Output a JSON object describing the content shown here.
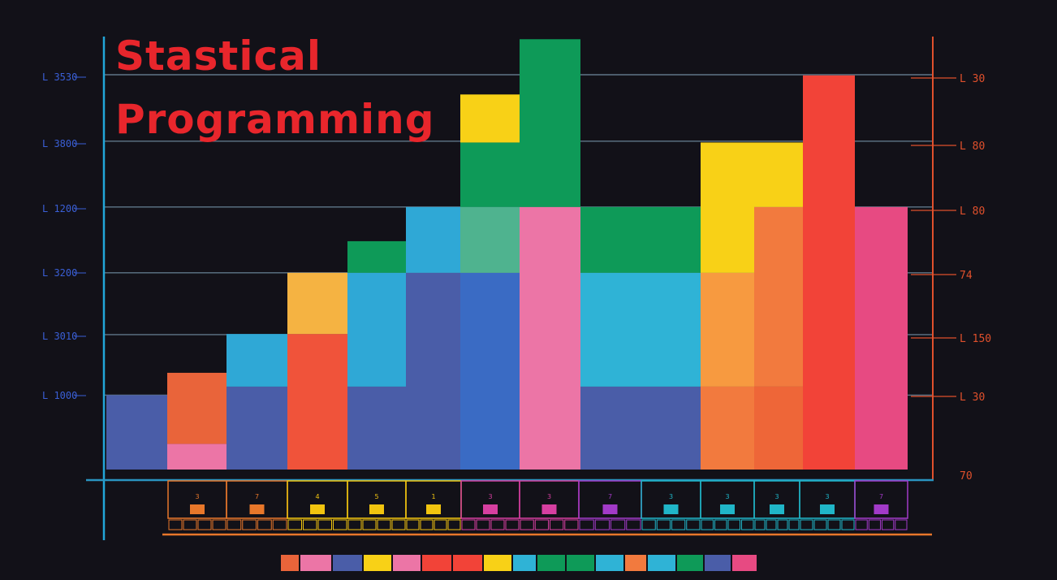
{
  "title_line1": "Stastical",
  "title_line2": "Programming",
  "colors": {
    "background": "#121118",
    "left_axis": "#22a6d8",
    "right_axis": "#e0502c",
    "gridline": "#5f7688",
    "left_tick_text": "#3a5fd6",
    "right_tick_text": "#e0502c"
  },
  "chart_data": {
    "type": "bar",
    "stacked": true,
    "title": "Stastical Programming",
    "left_ticks": [
      "L 1000",
      "L 3010",
      "L 3200",
      "L 1200",
      "L 3800",
      "L 3530"
    ],
    "right_ticks": [
      "70",
      "L 30",
      "L 150",
      "74",
      "L 80",
      "L 80",
      "L 30"
    ],
    "ylim": [
      0,
      600
    ],
    "categories": [
      "3",
      "7",
      "4",
      "5",
      "1",
      "3",
      "3",
      "7",
      "3",
      "3",
      "3",
      "3",
      "7"
    ],
    "category_colors": [
      "#e8772a",
      "#e8772a",
      "#f1c40f",
      "#f1c40f",
      "#f1c40f",
      "#d63fa0",
      "#d63fa0",
      "#a23ac8",
      "#20b6c8",
      "#20b6c8",
      "#20b6c8",
      "#20b6c8",
      "#a23ac8"
    ],
    "bars": [
      {
        "segments": [
          {
            "value": 113,
            "color": "#4a5da8"
          }
        ]
      },
      {
        "segments": [
          {
            "value": 39,
            "color": "#ec75a6"
          },
          {
            "value": 108,
            "color": "#e9643a"
          }
        ]
      },
      {
        "segments": [
          {
            "value": 126,
            "color": "#4a5da8"
          },
          {
            "value": 80,
            "color": "#2fa8d6"
          }
        ]
      },
      {
        "segments": [
          {
            "value": 206,
            "color": "#f0533a"
          },
          {
            "value": 93,
            "color": "#f5b342"
          }
        ]
      },
      {
        "segments": [
          {
            "value": 126,
            "color": "#4a5da8"
          },
          {
            "value": 173,
            "color": "#2fa8d6"
          },
          {
            "value": 48,
            "color": "#0e9a58"
          }
        ]
      },
      {
        "segments": [
          {
            "value": 299,
            "color": "#4a5da8"
          },
          {
            "value": 100,
            "color": "#2fa8d6"
          }
        ]
      },
      {
        "segments": [
          {
            "value": 299,
            "color": "#3a6bc4"
          },
          {
            "value": 100,
            "color": "#4fb38f"
          },
          {
            "value": 98,
            "color": "#0e9a58"
          },
          {
            "value": 73,
            "color": "#f8d117"
          }
        ]
      },
      {
        "segments": [
          {
            "value": 399,
            "color": "#ec75a6"
          },
          {
            "value": 255,
            "color": "#0e9a58"
          }
        ]
      },
      {
        "segments": [
          {
            "value": 126,
            "color": "#4a5da8"
          },
          {
            "value": 173,
            "color": "#2fb3d6"
          },
          {
            "value": 100,
            "color": "#0e9a58"
          }
        ]
      },
      {
        "segments": [
          {
            "value": 126,
            "color": "#f27a3e"
          },
          {
            "value": 173,
            "color": "#f79a40"
          },
          {
            "value": 198,
            "color": "#f8d117"
          }
        ]
      },
      {
        "segments": [
          {
            "value": 126,
            "color": "#ee6638"
          },
          {
            "value": 273,
            "color": "#f27a3e"
          },
          {
            "value": 98,
            "color": "#f8d117"
          }
        ]
      },
      {
        "segments": [
          {
            "value": 599,
            "color": "#f24338"
          }
        ]
      },
      {
        "segments": [
          {
            "value": 399,
            "color": "#e74a82"
          }
        ]
      }
    ],
    "legend_colors": [
      "#e9643a",
      "#ec75a6",
      "#4a5da8",
      "#f8d117",
      "#ec75a6",
      "#f24338",
      "#f24338",
      "#f8d117",
      "#2fb3d6",
      "#0e9a58",
      "#0e9a58",
      "#2fb3d6",
      "#f27a3e",
      "#2fb3d6",
      "#0e9a58",
      "#4a5da8",
      "#e74a82"
    ]
  }
}
